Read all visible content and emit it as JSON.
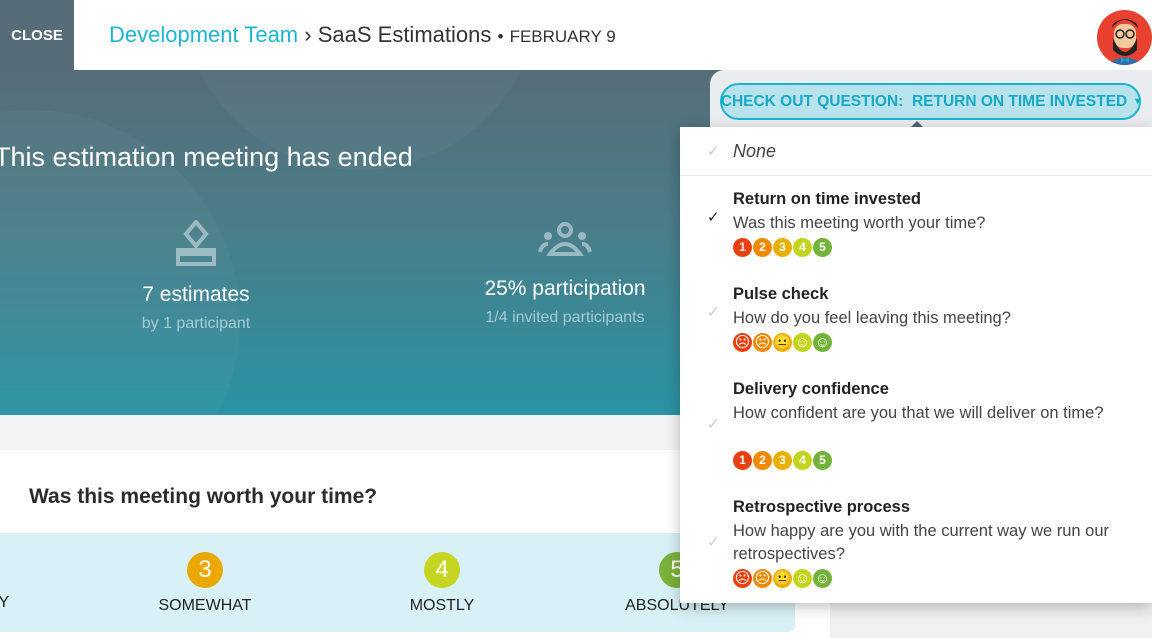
{
  "header": {
    "close_label": "CLOSE",
    "team": "Development Team",
    "separator": "›",
    "meeting": "SaaS Estimations",
    "bullet": "•",
    "date": "FEBRUARY 9"
  },
  "hero": {
    "title": "This estimation meeting has ended",
    "stats": [
      {
        "icon": "ballot-box-icon",
        "value": "7 estimates",
        "sub": "by 1 participant"
      },
      {
        "icon": "group-icon",
        "value": "25% participation",
        "sub": "1/4 invited participants"
      }
    ]
  },
  "question": {
    "text": "Was this meeting worth your time?",
    "options": [
      {
        "label": "LY"
      },
      {
        "num": "3",
        "label": "SOMEWHAT",
        "color": "#eaa800"
      },
      {
        "num": "4",
        "label": "MOSTLY",
        "color": "#c5d521"
      },
      {
        "num": "5",
        "label": "ABSOLUTELY",
        "color": "#7bb23a"
      }
    ]
  },
  "checkout": {
    "prefix": "CHECK OUT QUESTION:",
    "value": "RETURN ON TIME INVESTED",
    "caret": "▾"
  },
  "dropdown": {
    "none": "None",
    "check": "✓",
    "items": [
      {
        "title": "Return on time invested",
        "question": "Was this meeting worth your time?",
        "scale": "numbers",
        "selected": true
      },
      {
        "title": "Pulse check",
        "question": "How do you feel leaving this meeting?",
        "scale": "faces",
        "selected": false
      },
      {
        "title": "Delivery confidence",
        "question": "How confident are you that we will deliver on time?",
        "scale": "numbers",
        "selected": false
      },
      {
        "title": "Retrospective process",
        "question": "How happy are you with the current way we run our retrospectives?",
        "scale": "faces",
        "selected": false
      }
    ],
    "numbers": [
      "1",
      "2",
      "3",
      "4",
      "5"
    ],
    "faces": [
      "☹",
      "☹",
      "😐",
      "☺",
      "☺"
    ],
    "scale_colors": [
      "#e8410f",
      "#ef8a00",
      "#eab000",
      "#c3d41e",
      "#74b33a"
    ]
  }
}
